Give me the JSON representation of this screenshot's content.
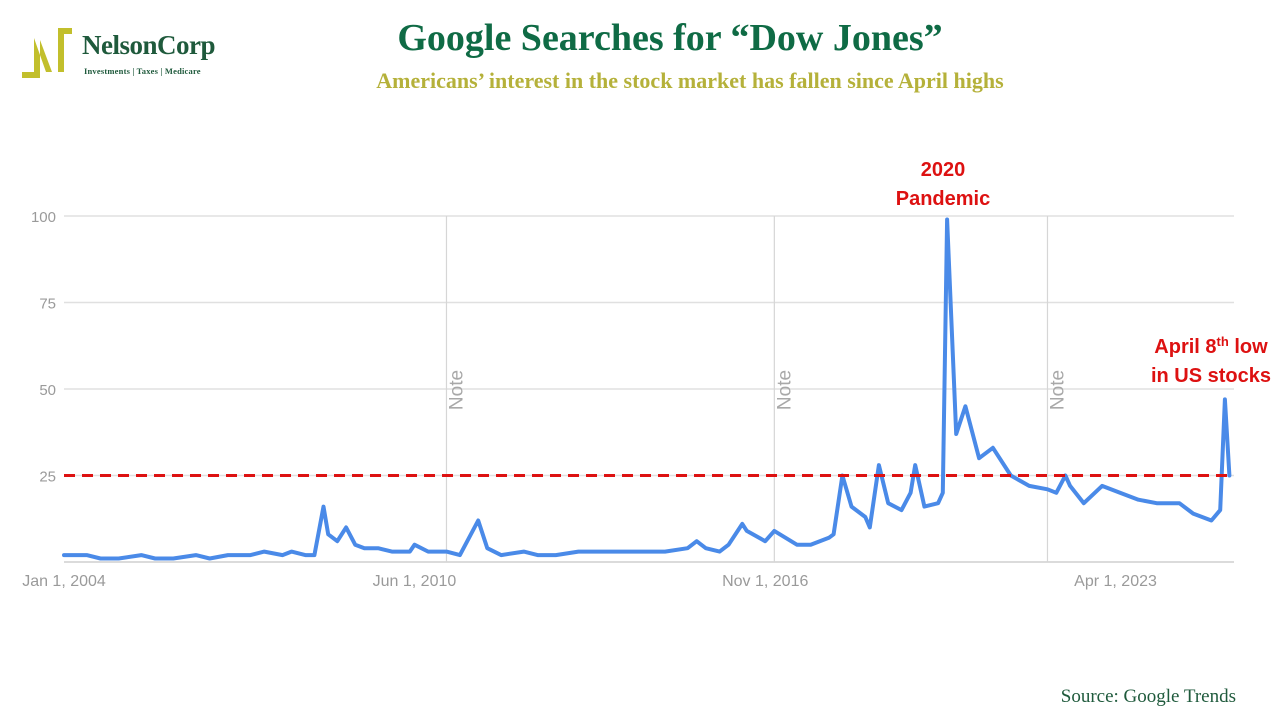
{
  "logo": {
    "name": "NelsonCorp",
    "tagline": "Investments | Taxes | Medicare",
    "colors": {
      "mark": "#c2bf2c",
      "text": "#1f5a3c"
    }
  },
  "header": {
    "title": "Google Searches for “Dow Jones”",
    "subtitle": "Americans’ interest in the stock market has fallen since April highs"
  },
  "source": "Source: Google Trends",
  "colors": {
    "line": "#4a8ae8",
    "reference_line": "#dd1111",
    "annotation": "#dd1111",
    "grid": "#e0e0e0",
    "axis_text": "#9a9a9a"
  },
  "chart_data": {
    "type": "line",
    "title": "",
    "xlabel": "",
    "ylabel": "",
    "ylim": [
      0,
      100
    ],
    "yticks": [
      0,
      25,
      50,
      75,
      100
    ],
    "ytick_labels": [
      "",
      "25",
      "50",
      "75",
      "100"
    ],
    "xlim": [
      "2004-01-01",
      "2025-06-01"
    ],
    "xticks": [
      "2004-01-01",
      "2010-06-01",
      "2016-11-01",
      "2023-04-01"
    ],
    "xtick_labels": [
      "Jan 1, 2004",
      "Jun 1, 2010",
      "Nov 1, 2016",
      "Apr 1, 2023"
    ],
    "grid": true,
    "legend": "none",
    "note_markers": [
      {
        "x": "2011-01-01",
        "label": "Note"
      },
      {
        "x": "2017-01-01",
        "label": "Note"
      },
      {
        "x": "2022-01-01",
        "label": "Note"
      }
    ],
    "reference_lines": [
      {
        "y": 25,
        "style": "dashed"
      }
    ],
    "annotations": [
      {
        "lines": [
          "2020",
          "Pandemic"
        ]
      },
      {
        "lines": [
          "April 8th low",
          "in US stocks"
        ],
        "superscript": "th"
      }
    ],
    "series": [
      {
        "x": [
          "2004-01-01",
          "2004-06-01",
          "2004-09-01",
          "2005-01-01",
          "2005-06-01",
          "2005-09-01",
          "2006-01-01",
          "2006-06-01",
          "2006-09-01",
          "2007-01-01",
          "2007-06-01",
          "2007-09-01",
          "2008-01-01",
          "2008-03-01",
          "2008-06-01",
          "2008-08-01",
          "2008-10-01",
          "2008-11-01",
          "2009-01-01",
          "2009-03-01",
          "2009-05-01",
          "2009-07-01",
          "2009-10-01",
          "2010-01-01",
          "2010-05-01",
          "2010-06-01",
          "2010-09-01",
          "2011-01-01",
          "2011-04-01",
          "2011-08-01",
          "2011-10-01",
          "2012-01-01",
          "2012-06-01",
          "2012-09-01",
          "2013-01-01",
          "2013-06-01",
          "2013-09-01",
          "2014-01-01",
          "2014-06-01",
          "2014-10-01",
          "2015-01-01",
          "2015-06-01",
          "2015-08-01",
          "2015-10-01",
          "2016-01-01",
          "2016-03-01",
          "2016-06-01",
          "2016-07-01",
          "2016-11-01",
          "2017-01-01",
          "2017-06-01",
          "2017-09-01",
          "2018-01-01",
          "2018-02-01",
          "2018-04-01",
          "2018-06-01",
          "2018-09-01",
          "2018-10-01",
          "2018-12-01",
          "2019-02-01",
          "2019-05-01",
          "2019-07-01",
          "2019-08-01",
          "2019-10-01",
          "2020-01-01",
          "2020-02-01",
          "2020-03-01",
          "2020-05-01",
          "2020-07-01",
          "2020-10-01",
          "2021-01-01",
          "2021-05-01",
          "2021-09-01",
          "2022-01-01",
          "2022-03-01",
          "2022-05-01",
          "2022-06-01",
          "2022-09-01",
          "2023-01-01",
          "2023-05-01",
          "2023-09-01",
          "2024-01-01",
          "2024-06-01",
          "2024-09-01",
          "2025-01-01",
          "2025-03-01",
          "2025-04-01",
          "2025-05-01"
        ],
        "y": [
          2,
          2,
          1,
          1,
          2,
          1,
          1,
          2,
          1,
          2,
          2,
          3,
          2,
          3,
          2,
          2,
          16,
          8,
          6,
          10,
          5,
          4,
          4,
          3,
          3,
          5,
          3,
          3,
          2,
          12,
          4,
          2,
          3,
          2,
          2,
          3,
          3,
          3,
          3,
          3,
          3,
          4,
          6,
          4,
          3,
          5,
          11,
          9,
          6,
          9,
          5,
          5,
          7,
          8,
          25,
          16,
          13,
          10,
          28,
          17,
          15,
          20,
          28,
          16,
          17,
          20,
          99,
          37,
          45,
          30,
          33,
          25,
          22,
          21,
          20,
          25,
          22,
          17,
          22,
          20,
          18,
          17,
          17,
          14,
          12,
          15,
          47,
          25
        ]
      }
    ]
  }
}
